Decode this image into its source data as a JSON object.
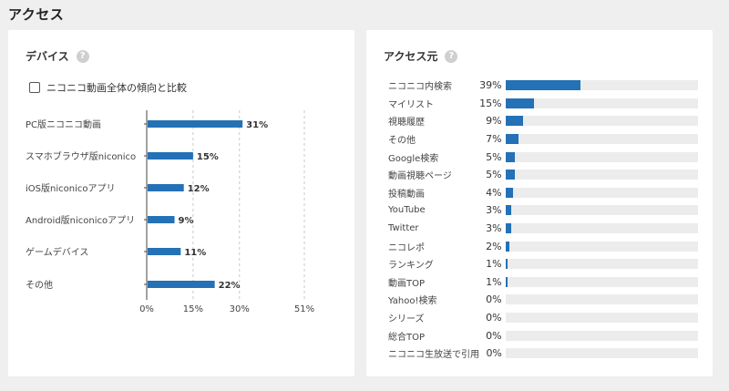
{
  "page": {
    "title": "アクセス"
  },
  "device_card": {
    "title": "デバイス",
    "help_glyph": "?",
    "compare_label": "ニコニコ動画全体の傾向と比較"
  },
  "source_card": {
    "title": "アクセス元",
    "help_glyph": "?",
    "items": [
      {
        "label": "ニコニコ内検索",
        "percent_text": "39%",
        "value": 39
      },
      {
        "label": "マイリスト",
        "percent_text": "15%",
        "value": 15
      },
      {
        "label": "視聴履歴",
        "percent_text": "9%",
        "value": 9
      },
      {
        "label": "その他",
        "percent_text": "7%",
        "value": 7
      },
      {
        "label": "Google検索",
        "percent_text": "5%",
        "value": 5
      },
      {
        "label": "動画視聴ページ",
        "percent_text": "5%",
        "value": 5
      },
      {
        "label": "投稿動画",
        "percent_text": "4%",
        "value": 4
      },
      {
        "label": "YouTube",
        "percent_text": "3%",
        "value": 3
      },
      {
        "label": "Twitter",
        "percent_text": "3%",
        "value": 3
      },
      {
        "label": "ニコレポ",
        "percent_text": "2%",
        "value": 2
      },
      {
        "label": "ランキング",
        "percent_text": "1%",
        "value": 1
      },
      {
        "label": "動画TOP",
        "percent_text": "1%",
        "value": 1
      },
      {
        "label": "Yahoo!検索",
        "percent_text": "0%",
        "value": 0
      },
      {
        "label": "シリーズ",
        "percent_text": "0%",
        "value": 0
      },
      {
        "label": "総合TOP",
        "percent_text": "0%",
        "value": 0
      },
      {
        "label": "ニコニコ生放送で引用",
        "percent_text": "0%",
        "value": 0
      }
    ]
  },
  "chart_data": [
    {
      "type": "bar",
      "orientation": "horizontal",
      "categories": [
        "PC版ニコニコ動画",
        "スマホブラウザ版niconico",
        "iOS版niconicoアプリ",
        "Android版niconicoアプリ",
        "ゲームデバイス",
        "その他"
      ],
      "values": [
        31,
        15,
        12,
        9,
        11,
        22
      ],
      "data_labels": [
        "31%",
        "15%",
        "12%",
        "9%",
        "11%",
        "22%"
      ],
      "x_ticks": [
        "0%",
        "15%",
        "30%",
        "51%"
      ],
      "x_tick_values": [
        0,
        15,
        30,
        51
      ],
      "xlim": [
        0,
        51
      ],
      "grid": "vertical-dashed",
      "color": "#2471b6"
    },
    {
      "type": "bar",
      "orientation": "horizontal",
      "categories": [
        "ニコニコ内検索",
        "マイリスト",
        "視聴履歴",
        "その他",
        "Google検索",
        "動画視聴ページ",
        "投稿動画",
        "YouTube",
        "Twitter",
        "ニコレポ",
        "ランキング",
        "動画TOP",
        "Yahoo!検索",
        "シリーズ",
        "総合TOP",
        "ニコニコ生放送で引用"
      ],
      "values": [
        39,
        15,
        9,
        7,
        5,
        5,
        4,
        3,
        3,
        2,
        1,
        1,
        0,
        0,
        0,
        0
      ],
      "xlim": [
        0,
        100
      ],
      "color": "#2471b6"
    }
  ]
}
